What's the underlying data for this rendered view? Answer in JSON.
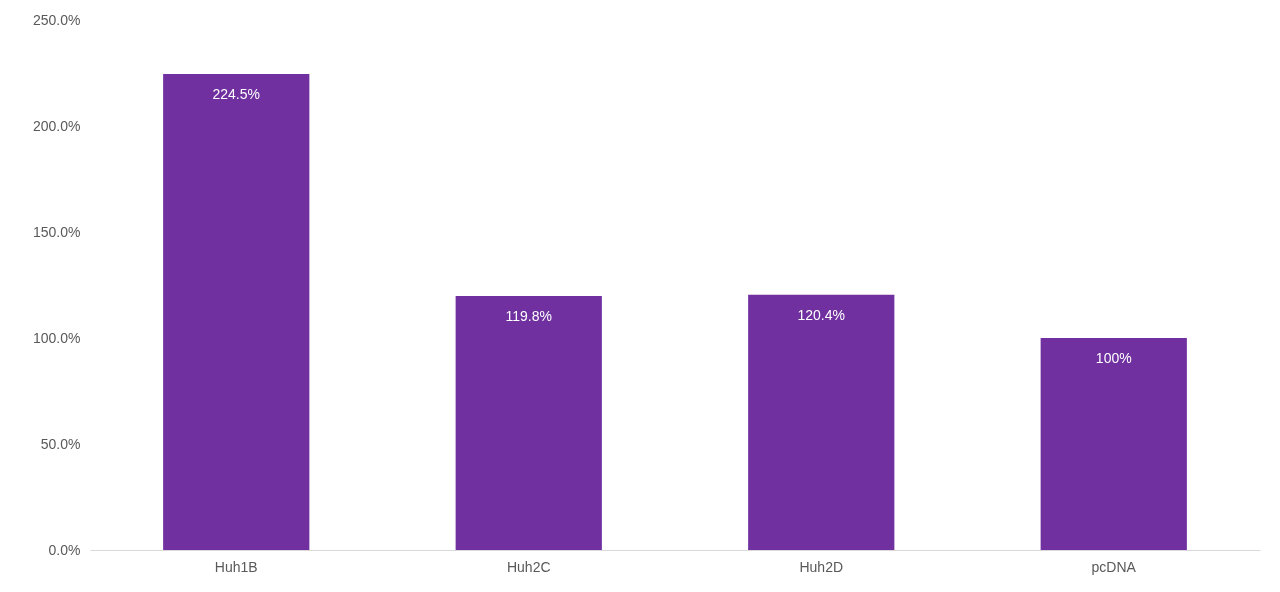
{
  "chart_data": {
    "type": "bar",
    "categories": [
      "Huh1B",
      "Huh2C",
      "Huh2D",
      "pcDNA"
    ],
    "values": [
      224.5,
      119.8,
      120.4,
      100
    ],
    "value_labels": [
      "224.5%",
      "119.8%",
      "120.4%",
      "100%"
    ],
    "color": "#7030a0",
    "ylim": [
      0,
      250
    ],
    "yticks": [
      {
        "value": 0,
        "label": "0.0%"
      },
      {
        "value": 50,
        "label": "50.0%"
      },
      {
        "value": 100,
        "label": "100.0%"
      },
      {
        "value": 150,
        "label": "150.0%"
      },
      {
        "value": 200,
        "label": "200.0%"
      },
      {
        "value": 250,
        "label": "250.0%"
      }
    ],
    "grid": false
  }
}
